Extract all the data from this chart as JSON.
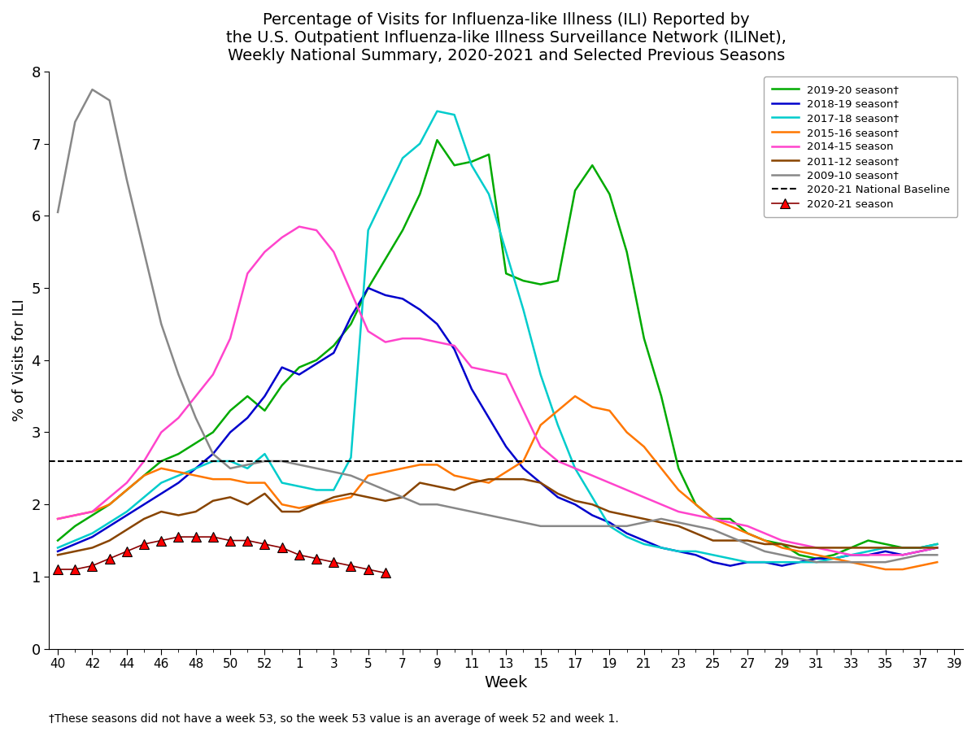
{
  "title": "Percentage of Visits for Influenza-like Illness (ILI) Reported by\nthe U.S. Outpatient Influenza-like Illness Surveillance Network (ILINet),\nWeekly National Summary, 2020-2021 and Selected Previous Seasons",
  "xlabel": "Week",
  "ylabel": "% of Visits for ILI",
  "footnote": "†These seasons did not have a week 53, so the week 53 value is an average of week 52 and week 1.",
  "baseline": 2.6,
  "ylim": [
    0,
    8
  ],
  "yticks": [
    0,
    1,
    2,
    3,
    4,
    5,
    6,
    7,
    8
  ],
  "week_labels_even": [
    "40",
    "42",
    "44",
    "46",
    "48",
    "50",
    "52",
    "1",
    "3",
    "5",
    "7",
    "9",
    "11",
    "13",
    "15",
    "17",
    "19",
    "21",
    "23",
    "25",
    "27",
    "29",
    "31",
    "33",
    "35",
    "37",
    "39"
  ],
  "n_weeks": 53,
  "seasons": {
    "2019-20": {
      "color": "#00aa00",
      "label": "2019-20 season†",
      "data": [
        1.5,
        1.7,
        1.85,
        2.0,
        2.2,
        2.4,
        2.6,
        2.7,
        2.85,
        3.0,
        3.3,
        3.5,
        3.3,
        3.65,
        3.9,
        4.0,
        4.2,
        4.5,
        5.0,
        5.4,
        5.8,
        6.3,
        7.05,
        6.7,
        6.75,
        6.85,
        5.2,
        5.1,
        5.05,
        5.1,
        6.35,
        6.7,
        6.3,
        5.5,
        4.3,
        3.5,
        2.5,
        2.0,
        1.8,
        1.8,
        1.6,
        1.5,
        1.45,
        1.3,
        1.25,
        1.3,
        1.4,
        1.5,
        1.45,
        1.4,
        1.4,
        1.45,
        null
      ]
    },
    "2018-19": {
      "color": "#0000cc",
      "label": "2018-19 season†",
      "data": [
        1.35,
        1.45,
        1.55,
        1.7,
        1.85,
        2.0,
        2.15,
        2.3,
        2.5,
        2.7,
        3.0,
        3.2,
        3.5,
        3.9,
        3.8,
        3.95,
        4.1,
        4.6,
        5.0,
        4.9,
        4.85,
        4.7,
        4.5,
        4.15,
        3.6,
        3.2,
        2.8,
        2.5,
        2.3,
        2.1,
        2.0,
        1.85,
        1.75,
        1.6,
        1.5,
        1.4,
        1.35,
        1.3,
        1.2,
        1.15,
        1.2,
        1.2,
        1.15,
        1.2,
        1.25,
        1.25,
        1.3,
        1.3,
        1.35,
        1.3,
        1.35,
        1.4,
        null
      ]
    },
    "2017-18": {
      "color": "#00cccc",
      "label": "2017-18 season†",
      "data": [
        1.4,
        1.5,
        1.6,
        1.75,
        1.9,
        2.1,
        2.3,
        2.4,
        2.5,
        2.6,
        2.6,
        2.5,
        2.7,
        2.3,
        2.25,
        2.2,
        2.2,
        2.65,
        5.8,
        6.3,
        6.8,
        7.0,
        7.45,
        7.4,
        6.7,
        6.3,
        5.5,
        4.7,
        3.8,
        3.1,
        2.5,
        2.1,
        1.7,
        1.55,
        1.45,
        1.4,
        1.35,
        1.35,
        1.3,
        1.25,
        1.2,
        1.2,
        1.2,
        1.2,
        1.2,
        1.25,
        1.3,
        1.35,
        1.4,
        1.4,
        1.4,
        1.45,
        null
      ]
    },
    "2015-16": {
      "color": "#ff7700",
      "label": "2015-16 season†",
      "data": [
        1.8,
        1.85,
        1.9,
        2.0,
        2.2,
        2.4,
        2.5,
        2.45,
        2.4,
        2.35,
        2.35,
        2.3,
        2.3,
        2.0,
        1.95,
        2.0,
        2.05,
        2.1,
        2.4,
        2.45,
        2.5,
        2.55,
        2.55,
        2.4,
        2.35,
        2.3,
        2.45,
        2.6,
        3.1,
        3.3,
        3.5,
        3.35,
        3.3,
        3.0,
        2.8,
        2.5,
        2.2,
        2.0,
        1.8,
        1.7,
        1.6,
        1.5,
        1.4,
        1.35,
        1.3,
        1.25,
        1.2,
        1.15,
        1.1,
        1.1,
        1.15,
        1.2,
        null
      ]
    },
    "2014-15": {
      "color": "#ff44cc",
      "label": "2014-15 season",
      "data": [
        1.8,
        1.85,
        1.9,
        2.1,
        2.3,
        2.6,
        3.0,
        3.2,
        3.5,
        3.8,
        4.3,
        5.2,
        5.5,
        5.7,
        5.85,
        5.8,
        5.5,
        4.95,
        4.4,
        4.25,
        4.3,
        4.3,
        4.25,
        4.2,
        3.9,
        3.85,
        3.8,
        3.3,
        2.8,
        2.6,
        2.5,
        2.4,
        2.3,
        2.2,
        2.1,
        2.0,
        1.9,
        1.85,
        1.8,
        1.75,
        1.7,
        1.6,
        1.5,
        1.45,
        1.4,
        1.35,
        1.3,
        1.3,
        1.3,
        1.3,
        1.35,
        1.4,
        null
      ]
    },
    "2011-12": {
      "color": "#884400",
      "label": "2011-12 season†",
      "data": [
        1.3,
        1.35,
        1.4,
        1.5,
        1.65,
        1.8,
        1.9,
        1.85,
        1.9,
        2.05,
        2.1,
        2.0,
        2.15,
        1.9,
        1.9,
        2.0,
        2.1,
        2.15,
        2.1,
        2.05,
        2.1,
        2.3,
        2.25,
        2.2,
        2.3,
        2.35,
        2.35,
        2.35,
        2.3,
        2.15,
        2.05,
        2.0,
        1.9,
        1.85,
        1.8,
        1.75,
        1.7,
        1.6,
        1.5,
        1.5,
        1.5,
        1.45,
        1.45,
        1.4,
        1.4,
        1.4,
        1.4,
        1.4,
        1.4,
        1.4,
        1.4,
        1.4,
        null
      ]
    },
    "2009-10": {
      "color": "#888888",
      "label": "2009-10 season†",
      "data": [
        6.05,
        7.3,
        7.75,
        7.6,
        6.5,
        5.5,
        4.5,
        3.8,
        3.2,
        2.7,
        2.5,
        2.55,
        2.6,
        2.6,
        2.55,
        2.5,
        2.45,
        2.4,
        2.3,
        2.2,
        2.1,
        2.0,
        2.0,
        1.95,
        1.9,
        1.85,
        1.8,
        1.75,
        1.7,
        1.7,
        1.7,
        1.7,
        1.7,
        1.7,
        1.75,
        1.8,
        1.75,
        1.7,
        1.65,
        1.55,
        1.45,
        1.35,
        1.3,
        1.25,
        1.2,
        1.2,
        1.2,
        1.2,
        1.2,
        1.25,
        1.3,
        1.3,
        null
      ]
    }
  },
  "season_2020_21": {
    "label": "2020-21 season",
    "marker_color": "red",
    "edge_color": "black",
    "data_x_idx": [
      0,
      1,
      2,
      3,
      4,
      5,
      6,
      7,
      8,
      9,
      10,
      11,
      12,
      13,
      14,
      15,
      16,
      17,
      18,
      19
    ],
    "data_y": [
      1.1,
      1.1,
      1.15,
      1.25,
      1.35,
      1.45,
      1.5,
      1.55,
      1.55,
      1.55,
      1.5,
      1.5,
      1.45,
      1.4,
      1.3,
      1.25,
      1.2,
      1.15,
      1.1,
      1.05
    ]
  }
}
